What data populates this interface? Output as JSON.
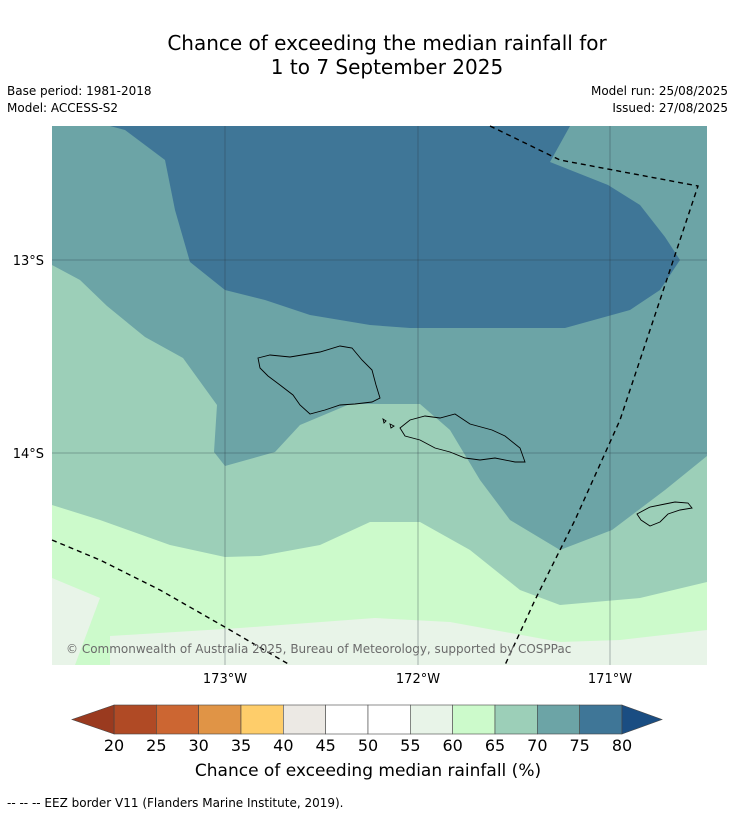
{
  "title_line1": "Chance of exceeding the median rainfall for",
  "title_line2": "1 to 7 September 2025",
  "base_period": "Base period: 1981-2018",
  "model": "Model: ACCESS-S2",
  "model_run": "Model run: 25/08/2025",
  "issued": "Issued: 27/08/2025",
  "axis": {
    "lat_ticks": [
      "13°S",
      "14°S"
    ],
    "lon_ticks": [
      "173°W",
      "172°W",
      "171°W"
    ]
  },
  "copyright": "© Commonwealth of Australia 2025, Bureau of Meteorology, supported by COSPPac",
  "colorbar": {
    "title": "Chance of exceeding median rainfall (%)",
    "ticks": [
      "20",
      "25",
      "30",
      "35",
      "40",
      "45",
      "50",
      "55",
      "60",
      "65",
      "70",
      "75",
      "80"
    ],
    "colors": {
      "below20": "#9a3a1f",
      "20-25": "#b04a25",
      "25-30": "#cc6632",
      "30-35": "#e09446",
      "35-40": "#fecd6a",
      "40-45": "#ece9e4",
      "45-50": "#ffffff",
      "50-55": "#ffffff",
      "55-60": "#e8f4e8",
      "60-65": "#ccfacb",
      "65-70": "#9ccfb8",
      "70-75": "#6ca4a6",
      "75-80": "#3f7697",
      "above80": "#1a4d82"
    }
  },
  "footnote": "--  --  -- EEZ border V11 (Flanders Marine Institute, 2019)."
}
